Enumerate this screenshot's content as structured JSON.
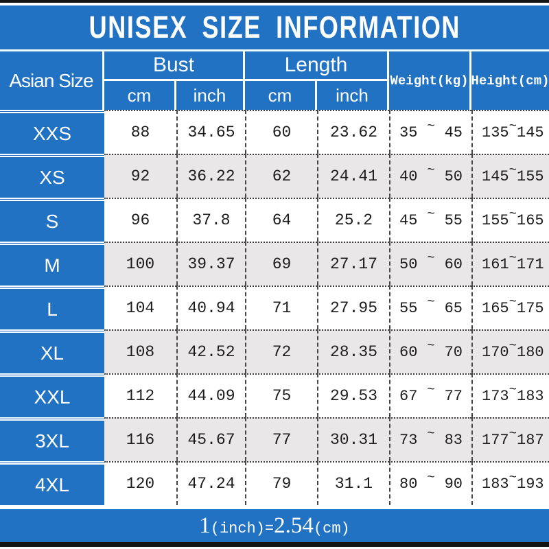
{
  "title": "UNISEX SIZE INFORMATION",
  "table": {
    "size_col_header": "Asian Size",
    "tilde": "~",
    "groups": [
      {
        "label": "Bust",
        "sub": [
          "cm",
          "inch"
        ]
      },
      {
        "label": "Length",
        "sub": [
          "cm",
          "inch"
        ]
      }
    ],
    "single_headers": [
      "Weight(kg)",
      "Height(cm)"
    ],
    "rows": [
      {
        "size": "XXS",
        "bust_cm": "88",
        "bust_inch": "34.65",
        "length_cm": "60",
        "length_inch": "23.62",
        "weight_min": "35",
        "weight_max": "45",
        "height_min": "135",
        "height_max": "145"
      },
      {
        "size": "XS",
        "bust_cm": "92",
        "bust_inch": "36.22",
        "length_cm": "62",
        "length_inch": "24.41",
        "weight_min": "40",
        "weight_max": "50",
        "height_min": "145",
        "height_max": "155"
      },
      {
        "size": "S",
        "bust_cm": "96",
        "bust_inch": "37.8",
        "length_cm": "64",
        "length_inch": "25.2",
        "weight_min": "45",
        "weight_max": "55",
        "height_min": "155",
        "height_max": "165"
      },
      {
        "size": "M",
        "bust_cm": "100",
        "bust_inch": "39.37",
        "length_cm": "69",
        "length_inch": "27.17",
        "weight_min": "50",
        "weight_max": "60",
        "height_min": "161",
        "height_max": "171"
      },
      {
        "size": "L",
        "bust_cm": "104",
        "bust_inch": "40.94",
        "length_cm": "71",
        "length_inch": "27.95",
        "weight_min": "55",
        "weight_max": "65",
        "height_min": "165",
        "height_max": "175"
      },
      {
        "size": "XL",
        "bust_cm": "108",
        "bust_inch": "42.52",
        "length_cm": "72",
        "length_inch": "28.35",
        "weight_min": "60",
        "weight_max": "70",
        "height_min": "170",
        "height_max": "180"
      },
      {
        "size": "XXL",
        "bust_cm": "112",
        "bust_inch": "44.09",
        "length_cm": "75",
        "length_inch": "29.53",
        "weight_min": "67",
        "weight_max": "77",
        "height_min": "173",
        "height_max": "183"
      },
      {
        "size": "3XL",
        "bust_cm": "116",
        "bust_inch": "45.67",
        "length_cm": "77",
        "length_inch": "30.31",
        "weight_min": "73",
        "weight_max": "83",
        "height_min": "177",
        "height_max": "187"
      },
      {
        "size": "4XL",
        "bust_cm": "120",
        "bust_inch": "47.24",
        "length_cm": "79",
        "length_inch": "31.1",
        "weight_min": "80",
        "weight_max": "90",
        "height_min": "183",
        "height_max": "193"
      }
    ]
  },
  "footer": {
    "p1": "1",
    "p2": "(inch)=",
    "p3": "2.54",
    "p4": "(cm)"
  },
  "colors": {
    "blue": "#2272c4",
    "row_alt": "#e9e7e8",
    "bar": "#151515"
  },
  "chart_data": {
    "type": "table",
    "title": "UNISEX SIZE INFORMATION",
    "columns": [
      "Asian Size",
      "Bust cm",
      "Bust inch",
      "Length cm",
      "Length inch",
      "Weight(kg)",
      "Height(cm)"
    ],
    "rows": [
      [
        "XXS",
        "88",
        "34.65",
        "60",
        "23.62",
        "35~45",
        "135~145"
      ],
      [
        "XS",
        "92",
        "36.22",
        "62",
        "24.41",
        "40~50",
        "145~155"
      ],
      [
        "S",
        "96",
        "37.8",
        "64",
        "25.2",
        "45~55",
        "155~165"
      ],
      [
        "M",
        "100",
        "39.37",
        "69",
        "27.17",
        "50~60",
        "161~171"
      ],
      [
        "L",
        "104",
        "40.94",
        "71",
        "27.95",
        "55~65",
        "165~175"
      ],
      [
        "XL",
        "108",
        "42.52",
        "72",
        "28.35",
        "60~70",
        "170~180"
      ],
      [
        "XXL",
        "112",
        "44.09",
        "75",
        "29.53",
        "67~77",
        "173~183"
      ],
      [
        "3XL",
        "116",
        "45.67",
        "77",
        "30.31",
        "73~83",
        "177~187"
      ],
      [
        "4XL",
        "120",
        "47.24",
        "79",
        "31.1",
        "80~90",
        "183~193"
      ]
    ],
    "footnote": "1(inch)=2.54(cm)"
  }
}
